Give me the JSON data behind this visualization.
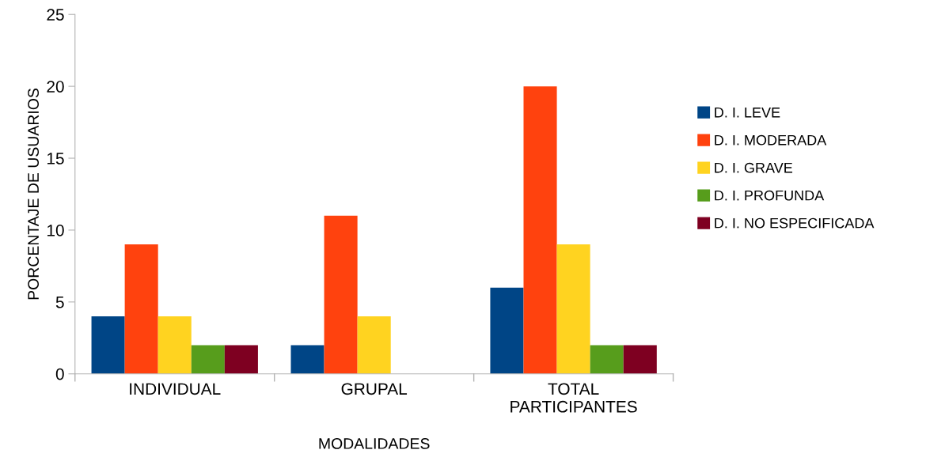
{
  "chart_data": {
    "type": "bar",
    "xlabel": "MODALIDADES",
    "ylabel": "PORCENTAJE DE USUARIOS",
    "categories": [
      "INDIVIDUAL",
      "GRUPAL",
      "TOTAL\nPARTICIPANTES"
    ],
    "series": [
      {
        "name": "D. I. LEVE",
        "color": "#004586",
        "values": [
          4,
          2,
          6
        ]
      },
      {
        "name": "D. I. MODERADA",
        "color": "#ff420e",
        "values": [
          9,
          11,
          20
        ]
      },
      {
        "name": "D. I. GRAVE",
        "color": "#ffd320",
        "values": [
          4,
          4,
          9
        ]
      },
      {
        "name": "D. I. PROFUNDA",
        "color": "#579d1c",
        "values": [
          2,
          0,
          2
        ]
      },
      {
        "name": "D. I. NO ESPECIFICADA",
        "color": "#7e0021",
        "values": [
          2,
          0,
          2
        ]
      }
    ],
    "ylim": [
      0,
      25
    ],
    "yticks": [
      0,
      5,
      10,
      15,
      20,
      25
    ],
    "grid": false,
    "legend": "right"
  }
}
